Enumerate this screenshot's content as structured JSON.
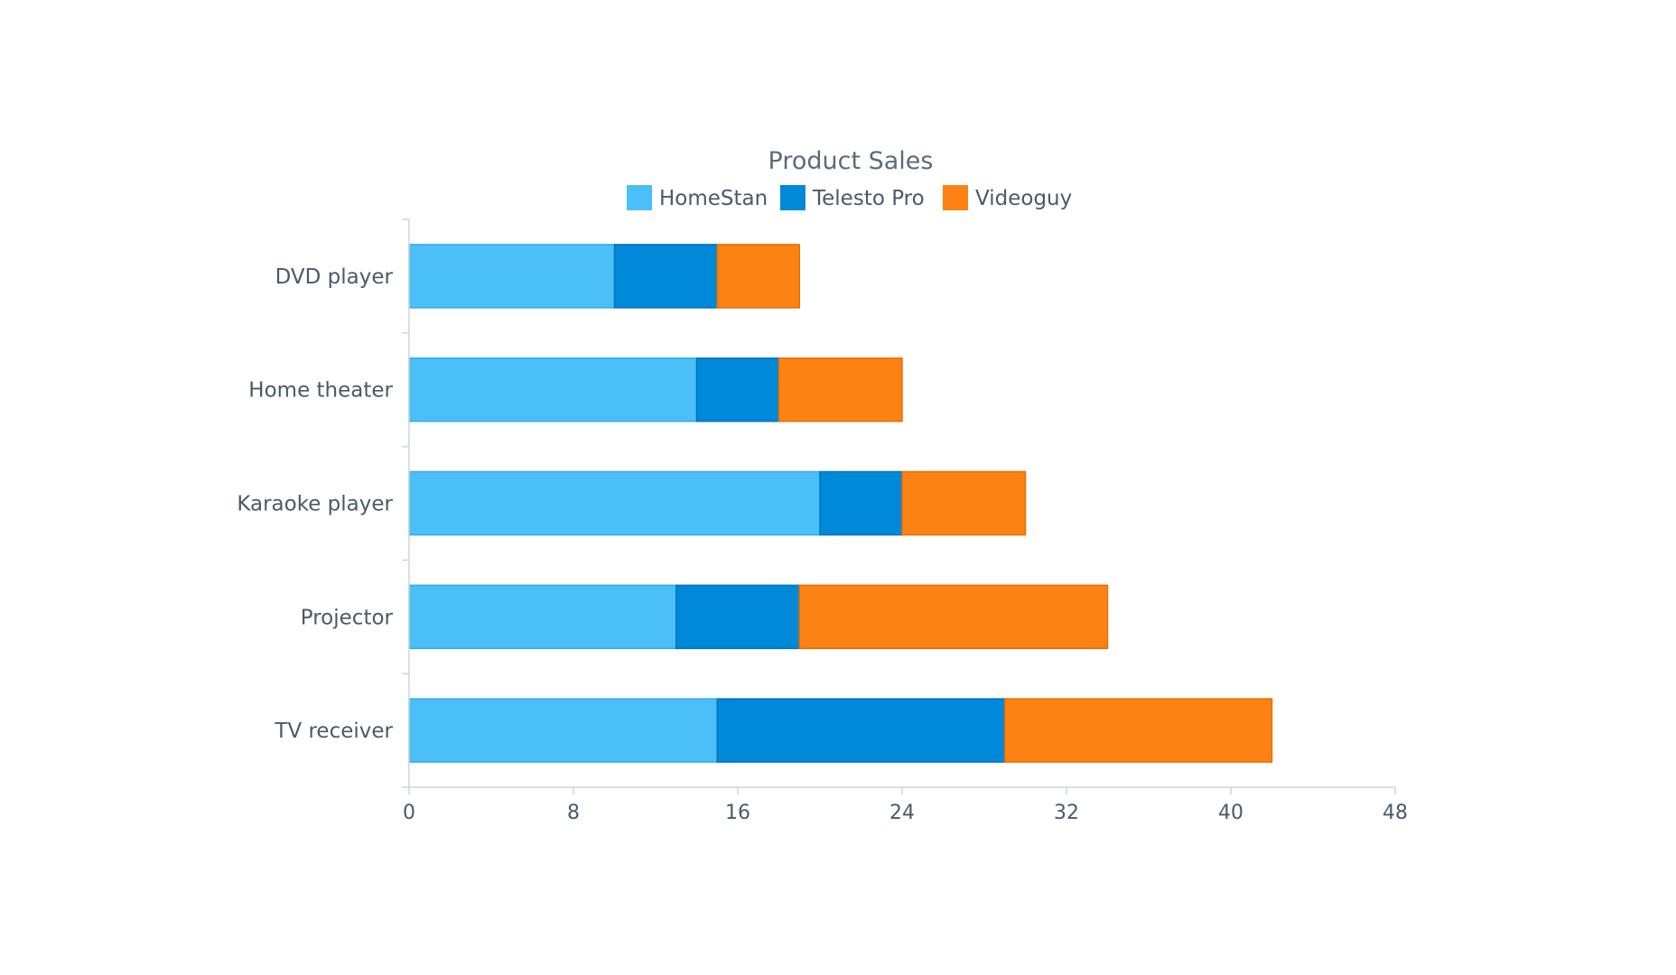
{
  "chart_data": {
    "type": "bar",
    "orientation": "horizontal",
    "stacked": true,
    "title": "Product Sales",
    "categories": [
      "DVD player",
      "Home theater",
      "Karaoke player",
      "Projector",
      "TV receiver"
    ],
    "series": [
      {
        "name": "HomeStan",
        "color": "#4bbff7",
        "values": [
          10,
          14,
          20,
          13,
          15
        ]
      },
      {
        "name": "Telesto Pro",
        "color": "#0088d9",
        "values": [
          5,
          4,
          4,
          6,
          14
        ]
      },
      {
        "name": "Videoguy",
        "color": "#fd8214",
        "values": [
          4,
          6,
          6,
          15,
          13
        ]
      }
    ],
    "xlim": [
      0,
      48
    ],
    "x_ticks": [
      "0",
      "8",
      "16",
      "24",
      "32",
      "40",
      "48"
    ],
    "grid": false,
    "legend_position": "top"
  }
}
